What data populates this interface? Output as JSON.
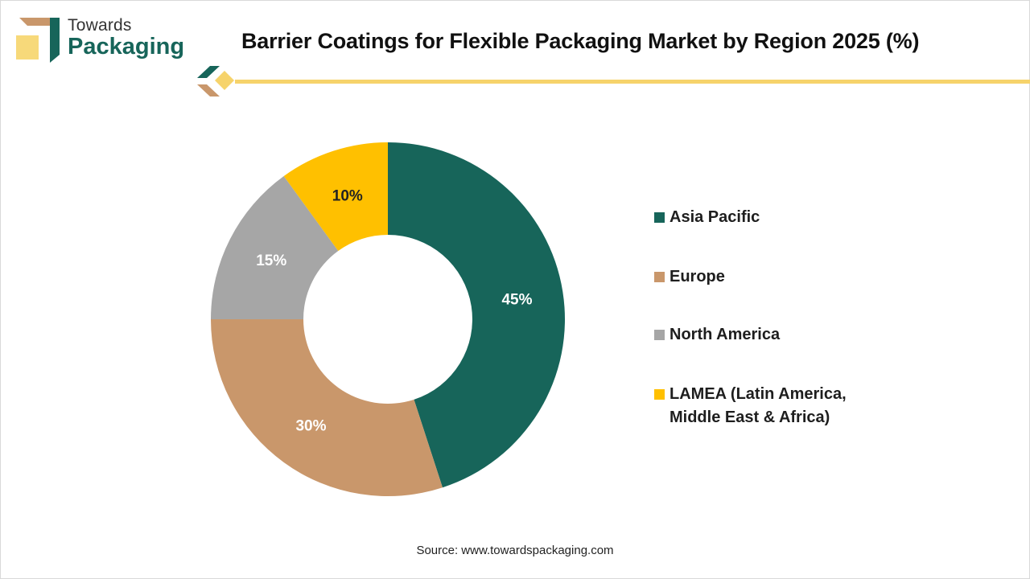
{
  "brand": {
    "line1": "Towards",
    "line2": "Packaging"
  },
  "colors": {
    "brand_green": "#17655a",
    "brand_tan": "#c9976b",
    "brand_yellow": "#f7d97a",
    "accent_line": "#f6d36b"
  },
  "chart_data": {
    "type": "pie",
    "donut": true,
    "title": "Barrier Coatings for Flexible Packaging Market by Region 2025 (%)",
    "legend_position": "right",
    "series": [
      {
        "categories": [
          "Asia Pacific",
          "Europe",
          "North America",
          "LAMEA (Latin America, Middle East & Africa)"
        ],
        "legend_lines": [
          [
            "Asia Pacific"
          ],
          [
            "Europe"
          ],
          [
            "North America"
          ],
          [
            "LAMEA (Latin America,",
            "Middle East & Africa)"
          ]
        ],
        "values": [
          45,
          30,
          15,
          10
        ],
        "labels": [
          "45%",
          "30%",
          "15%",
          "10%"
        ],
        "colors": [
          "#17655a",
          "#c9976b",
          "#a6a6a6",
          "#ffc000"
        ]
      }
    ]
  },
  "source": "Source: www.towardspackaging.com"
}
